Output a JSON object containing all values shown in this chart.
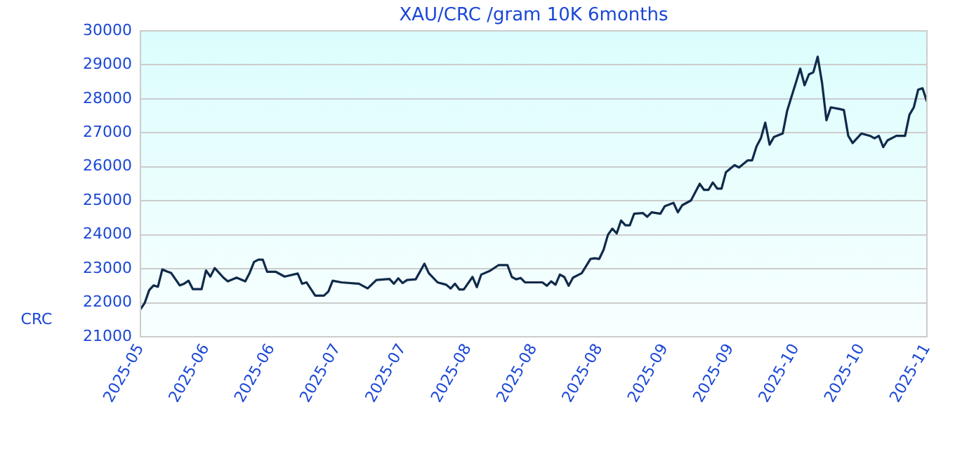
{
  "chart_data": {
    "type": "line",
    "title": "XAU/CRC /gram 10K 6months",
    "ylabel": "CRC",
    "x": [
      "2025-05-18",
      "2025-05-19",
      "2025-05-20",
      "2025-05-21",
      "2025-05-22",
      "2025-05-23",
      "2025-05-24",
      "2025-05-25",
      "2025-05-27",
      "2025-05-28",
      "2025-05-29",
      "2025-05-30",
      "2025-06-01",
      "2025-06-02",
      "2025-06-03",
      "2025-06-04",
      "2025-06-06",
      "2025-06-07",
      "2025-06-09",
      "2025-06-11",
      "2025-06-12",
      "2025-06-13",
      "2025-06-14",
      "2025-06-15",
      "2025-06-16",
      "2025-06-18",
      "2025-06-20",
      "2025-06-23",
      "2025-06-24",
      "2025-06-25",
      "2025-06-27",
      "2025-06-29",
      "2025-06-30",
      "2025-07-01",
      "2025-07-03",
      "2025-07-07",
      "2025-07-09",
      "2025-07-11",
      "2025-07-14",
      "2025-07-15",
      "2025-07-16",
      "2025-07-17",
      "2025-07-18",
      "2025-07-20",
      "2025-07-22",
      "2025-07-23",
      "2025-07-25",
      "2025-07-27",
      "2025-07-28",
      "2025-07-29",
      "2025-07-30",
      "2025-07-31",
      "2025-08-02",
      "2025-08-03",
      "2025-08-04",
      "2025-08-06",
      "2025-08-08",
      "2025-08-10",
      "2025-08-11",
      "2025-08-12",
      "2025-08-13",
      "2025-08-14",
      "2025-08-18",
      "2025-08-19",
      "2025-08-20",
      "2025-08-21",
      "2025-08-22",
      "2025-08-23",
      "2025-08-24",
      "2025-08-25",
      "2025-08-27",
      "2025-08-29",
      "2025-08-30",
      "2025-08-31",
      "2025-09-01",
      "2025-09-02",
      "2025-09-03",
      "2025-09-04",
      "2025-09-05",
      "2025-09-06",
      "2025-09-07",
      "2025-09-08",
      "2025-09-10",
      "2025-09-11",
      "2025-09-12",
      "2025-09-14",
      "2025-09-15",
      "2025-09-17",
      "2025-09-18",
      "2025-09-19",
      "2025-09-21",
      "2025-09-23",
      "2025-09-24",
      "2025-09-25",
      "2025-09-26",
      "2025-09-27",
      "2025-09-28",
      "2025-09-29",
      "2025-10-01",
      "2025-10-02",
      "2025-10-04",
      "2025-10-05",
      "2025-10-06",
      "2025-10-07",
      "2025-10-08",
      "2025-10-09",
      "2025-10-10",
      "2025-10-12",
      "2025-10-13",
      "2025-10-14",
      "2025-10-15",
      "2025-10-16",
      "2025-10-17",
      "2025-10-18",
      "2025-10-19",
      "2025-10-20",
      "2025-10-21",
      "2025-10-22",
      "2025-10-23",
      "2025-10-25",
      "2025-10-26",
      "2025-10-27",
      "2025-10-28",
      "2025-10-30",
      "2025-11-01",
      "2025-11-02",
      "2025-11-03",
      "2025-11-04",
      "2025-11-05",
      "2025-11-07",
      "2025-11-09",
      "2025-11-10",
      "2025-11-11",
      "2025-11-12",
      "2025-11-13",
      "2025-11-14"
    ],
    "series": [
      {
        "color": "#0f2a4a",
        "values": [
          21810,
          22000,
          22370,
          22510,
          22470,
          22980,
          22925,
          22880,
          22510,
          22560,
          22650,
          22400,
          22400,
          22950,
          22770,
          23020,
          22740,
          22630,
          22740,
          22630,
          22880,
          23200,
          23270,
          23270,
          22910,
          22910,
          22770,
          22860,
          22560,
          22600,
          22210,
          22210,
          22330,
          22650,
          22600,
          22560,
          22420,
          22670,
          22700,
          22560,
          22720,
          22580,
          22670,
          22690,
          23150,
          22870,
          22600,
          22530,
          22420,
          22560,
          22390,
          22390,
          22760,
          22460,
          22830,
          22940,
          23110,
          23110,
          22760,
          22690,
          22730,
          22600,
          22600,
          22500,
          22630,
          22530,
          22830,
          22760,
          22500,
          22740,
          22870,
          23290,
          23310,
          23290,
          23560,
          24000,
          24180,
          24040,
          24420,
          24280,
          24280,
          24620,
          24640,
          24530,
          24660,
          24620,
          24840,
          24940,
          24660,
          24870,
          25010,
          25500,
          25320,
          25320,
          25540,
          25360,
          25360,
          25840,
          26050,
          25980,
          26190,
          26190,
          26600,
          26840,
          27300,
          26650,
          26880,
          26980,
          27640,
          28060,
          28470,
          28890,
          28400,
          28720,
          28780,
          29240,
          28470,
          27370,
          27750,
          27700,
          27670,
          26910,
          26700,
          26980,
          26910,
          26840,
          26910,
          26580,
          26780,
          26910,
          26910,
          27530,
          27750,
          28270,
          28310,
          27920
        ]
      }
    ],
    "xlim": [
      "2025-05-18",
      "2025-11-14"
    ],
    "xticks": [
      {
        "value": "2025-05-18",
        "label": "2025-05"
      },
      {
        "value": "2025-06-02",
        "label": "2025-06"
      },
      {
        "value": "2025-06-17",
        "label": "2025-06"
      },
      {
        "value": "2025-07-02",
        "label": "2025-07"
      },
      {
        "value": "2025-07-17",
        "label": "2025-07"
      },
      {
        "value": "2025-08-01",
        "label": "2025-08"
      },
      {
        "value": "2025-08-16",
        "label": "2025-08"
      },
      {
        "value": "2025-08-31",
        "label": "2025-08"
      },
      {
        "value": "2025-09-15",
        "label": "2025-09"
      },
      {
        "value": "2025-09-30",
        "label": "2025-09"
      },
      {
        "value": "2025-10-15",
        "label": "2025-10"
      },
      {
        "value": "2025-10-30",
        "label": "2025-10"
      },
      {
        "value": "2025-11-14",
        "label": "2025-11"
      }
    ],
    "ylim": [
      21000,
      30000
    ],
    "yticks": [
      21000,
      22000,
      23000,
      24000,
      25000,
      26000,
      27000,
      28000,
      29000,
      30000
    ],
    "grid": "y",
    "legend": false,
    "marker": "none",
    "line_style": "solid"
  }
}
